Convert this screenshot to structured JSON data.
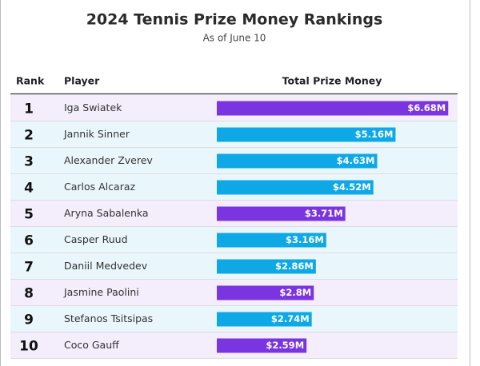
{
  "chart_data": {
    "type": "bar",
    "title": "2024 Tennis Prize Money Rankings",
    "subtitle": "As of June 10",
    "columns": [
      "Rank",
      "Player",
      "Total Prize Money"
    ],
    "ranks": [
      1,
      2,
      3,
      4,
      5,
      6,
      7,
      8,
      9,
      10
    ],
    "categories": [
      "Iga Swiatek",
      "Jannik Sinner",
      "Alexander Zverev",
      "Carlos Alcaraz",
      "Aryna Sabalenka",
      "Casper Ruud",
      "Daniil Medvedev",
      "Jasmine Paolini",
      "Stefanos Tsitsipas",
      "Coco Gauff"
    ],
    "values": [
      6.68,
      5.16,
      4.63,
      4.52,
      3.71,
      3.16,
      2.86,
      2.8,
      2.74,
      2.59
    ],
    "value_labels": [
      "$6.68M",
      "$5.16M",
      "$4.63M",
      "$4.52M",
      "$3.71M",
      "$3.16M",
      "$2.86M",
      "$2.8M",
      "$2.74M",
      "$2.59M"
    ],
    "colors": [
      "#7b35e0",
      "#0ea8e6",
      "#0ea8e6",
      "#0ea8e6",
      "#7b35e0",
      "#0ea8e6",
      "#0ea8e6",
      "#7b35e0",
      "#0ea8e6",
      "#7b35e0"
    ]
  }
}
